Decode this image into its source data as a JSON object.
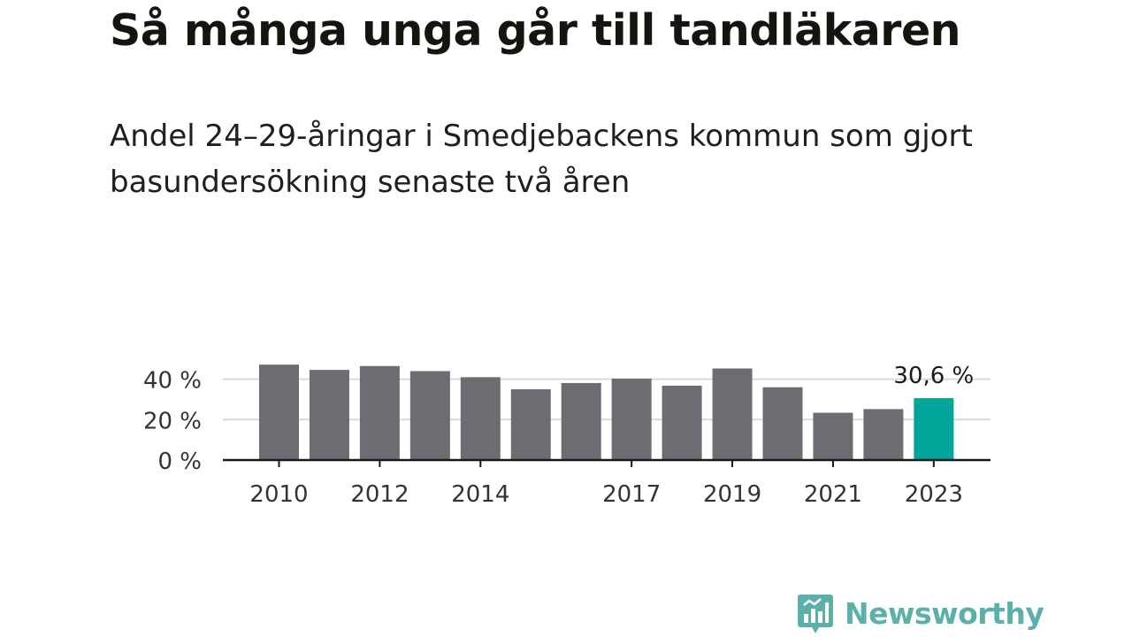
{
  "title": "Så många unga går till tandläkaren",
  "subtitle": "Andel 24–29-åringar i Smedjebackens kommun som gjort basundersökning senaste två åren",
  "brand": {
    "name": "Newsworthy",
    "color": "#5bb0aa"
  },
  "colors": {
    "bar": "#6d6c73",
    "highlight": "#00a499",
    "grid": "#d9d9d9",
    "axis": "#1a1a1a"
  },
  "chart_data": {
    "type": "bar",
    "categories": [
      "2010",
      "2011",
      "2012",
      "2013",
      "2014",
      "2015",
      "2016",
      "2017",
      "2018",
      "2019",
      "2020",
      "2021",
      "2022",
      "2023"
    ],
    "values": [
      47.2,
      44.6,
      46.5,
      44.0,
      41.0,
      35.0,
      38.1,
      40.3,
      36.8,
      45.3,
      36.0,
      23.4,
      25.2,
      30.6
    ],
    "x_tick_labels": [
      "2010",
      "2012",
      "2014",
      "2017",
      "2019",
      "2021",
      "2023"
    ],
    "y_ticks": [
      {
        "value": 0,
        "label": "0 %"
      },
      {
        "value": 20,
        "label": "20 %"
      },
      {
        "value": 40,
        "label": "40 %"
      }
    ],
    "ylim": [
      0,
      50
    ],
    "highlight_index": 13,
    "annotation": "30,6 %",
    "grid": true
  }
}
